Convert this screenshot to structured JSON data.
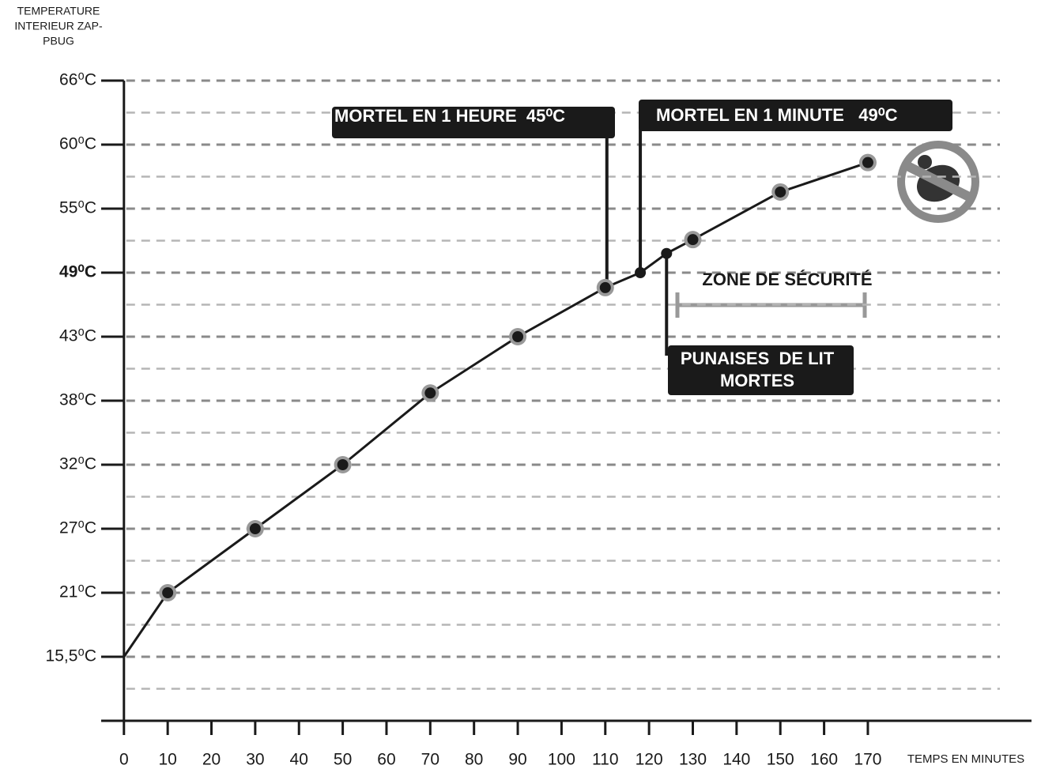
{
  "chart_data": {
    "type": "line",
    "y_label": [
      "TEMPERATURE",
      "INTERIEUR ZAP-",
      "PBUG"
    ],
    "x_label": "TEMPS EN MINUTES",
    "xlim": [
      -5.2,
      207.4
    ],
    "xticks": [
      0,
      10,
      20,
      30,
      40,
      50,
      60,
      70,
      80,
      90,
      100,
      110,
      120,
      130,
      140,
      150,
      160,
      170
    ],
    "ylim": [
      10,
      66
    ],
    "yticks": [
      {
        "value": 15.5,
        "label": "15,5⁰C"
      },
      {
        "value": 21,
        "label": "21⁰C"
      },
      {
        "value": 27,
        "label": "27⁰C"
      },
      {
        "value": 32,
        "label": "32⁰C"
      },
      {
        "value": 38,
        "label": "38⁰C"
      },
      {
        "value": 43,
        "label": "43⁰C"
      },
      {
        "value": 49,
        "label": "49⁰C",
        "bold": true
      },
      {
        "value": 55,
        "label": "55⁰C"
      },
      {
        "value": 60,
        "label": "60⁰C"
      },
      {
        "value": 66,
        "label": "66⁰C"
      }
    ],
    "grid": true,
    "series": [
      {
        "color": "#1a1a1a",
        "x": [
          0,
          10,
          30,
          50,
          70,
          90,
          110,
          118,
          124,
          130,
          150,
          170
        ],
        "values": [
          15.5,
          21,
          27,
          32,
          38.6,
          43,
          47.6,
          49,
          50.8,
          52.1,
          56.3,
          58.6
        ],
        "marker_halo": [
          false,
          true,
          true,
          true,
          true,
          true,
          true,
          false,
          false,
          true,
          true,
          true
        ]
      }
    ],
    "annotations": [
      "MORTEL EN 1 HEURE  45⁰C",
      "MORTEL EN 1 MINUTE   49⁰C",
      "ZONE DE SÉCURITÉ",
      [
        "PUNAISES  DE LIT",
        "MORTES"
      ]
    ]
  }
}
